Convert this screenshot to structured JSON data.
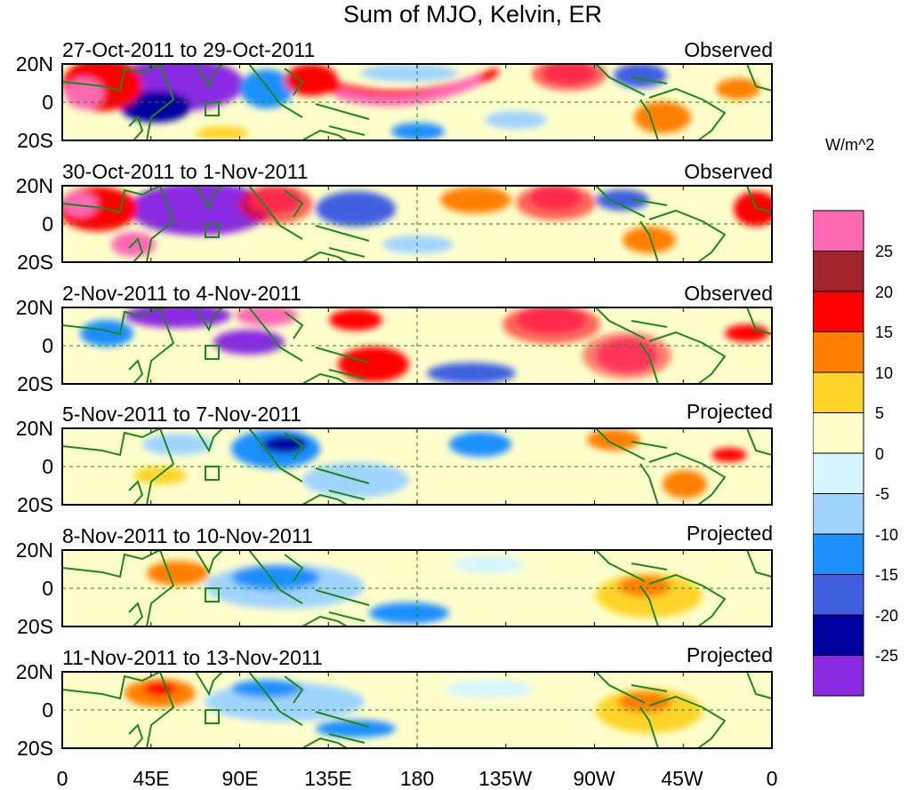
{
  "title": "Sum of MJO, Kelvin, ER",
  "panels": [
    {
      "date_range": "27-Oct-2011 to 29-Oct-2011",
      "status": "Observed"
    },
    {
      "date_range": "30-Oct-2011 to 1-Nov-2011",
      "status": "Observed"
    },
    {
      "date_range": "2-Nov-2011 to 4-Nov-2011",
      "status": "Observed"
    },
    {
      "date_range": "5-Nov-2011 to 7-Nov-2011",
      "status": "Projected"
    },
    {
      "date_range": "8-Nov-2011 to 10-Nov-2011",
      "status": "Projected"
    },
    {
      "date_range": "11-Nov-2011 to 13-Nov-2011",
      "status": "Projected"
    }
  ],
  "lat_labels": [
    "20N",
    "0",
    "20S"
  ],
  "lon_labels": [
    "0",
    "45E",
    "90E",
    "135E",
    "180",
    "135W",
    "90W",
    "45W",
    "0"
  ],
  "colorbar": {
    "unit": "W/m^2",
    "labels": [
      "25",
      "20",
      "15",
      "10",
      "5",
      "0",
      "-5",
      "-10",
      "-15",
      "-20",
      "-25"
    ],
    "colors": [
      "#ff69b4",
      "#a0242a",
      "#ff0000",
      "#ff7f00",
      "#ffd42a",
      "#ffffcc",
      "#d6f5ff",
      "#a0d4ff",
      "#1e8fff",
      "#4060e0",
      "#0000a0",
      "#8a2be2"
    ]
  },
  "colors": {
    "coast": "#1a8a1a",
    "grid_dash": "#1a8a1a",
    "box": "#1a8a1a"
  }
}
